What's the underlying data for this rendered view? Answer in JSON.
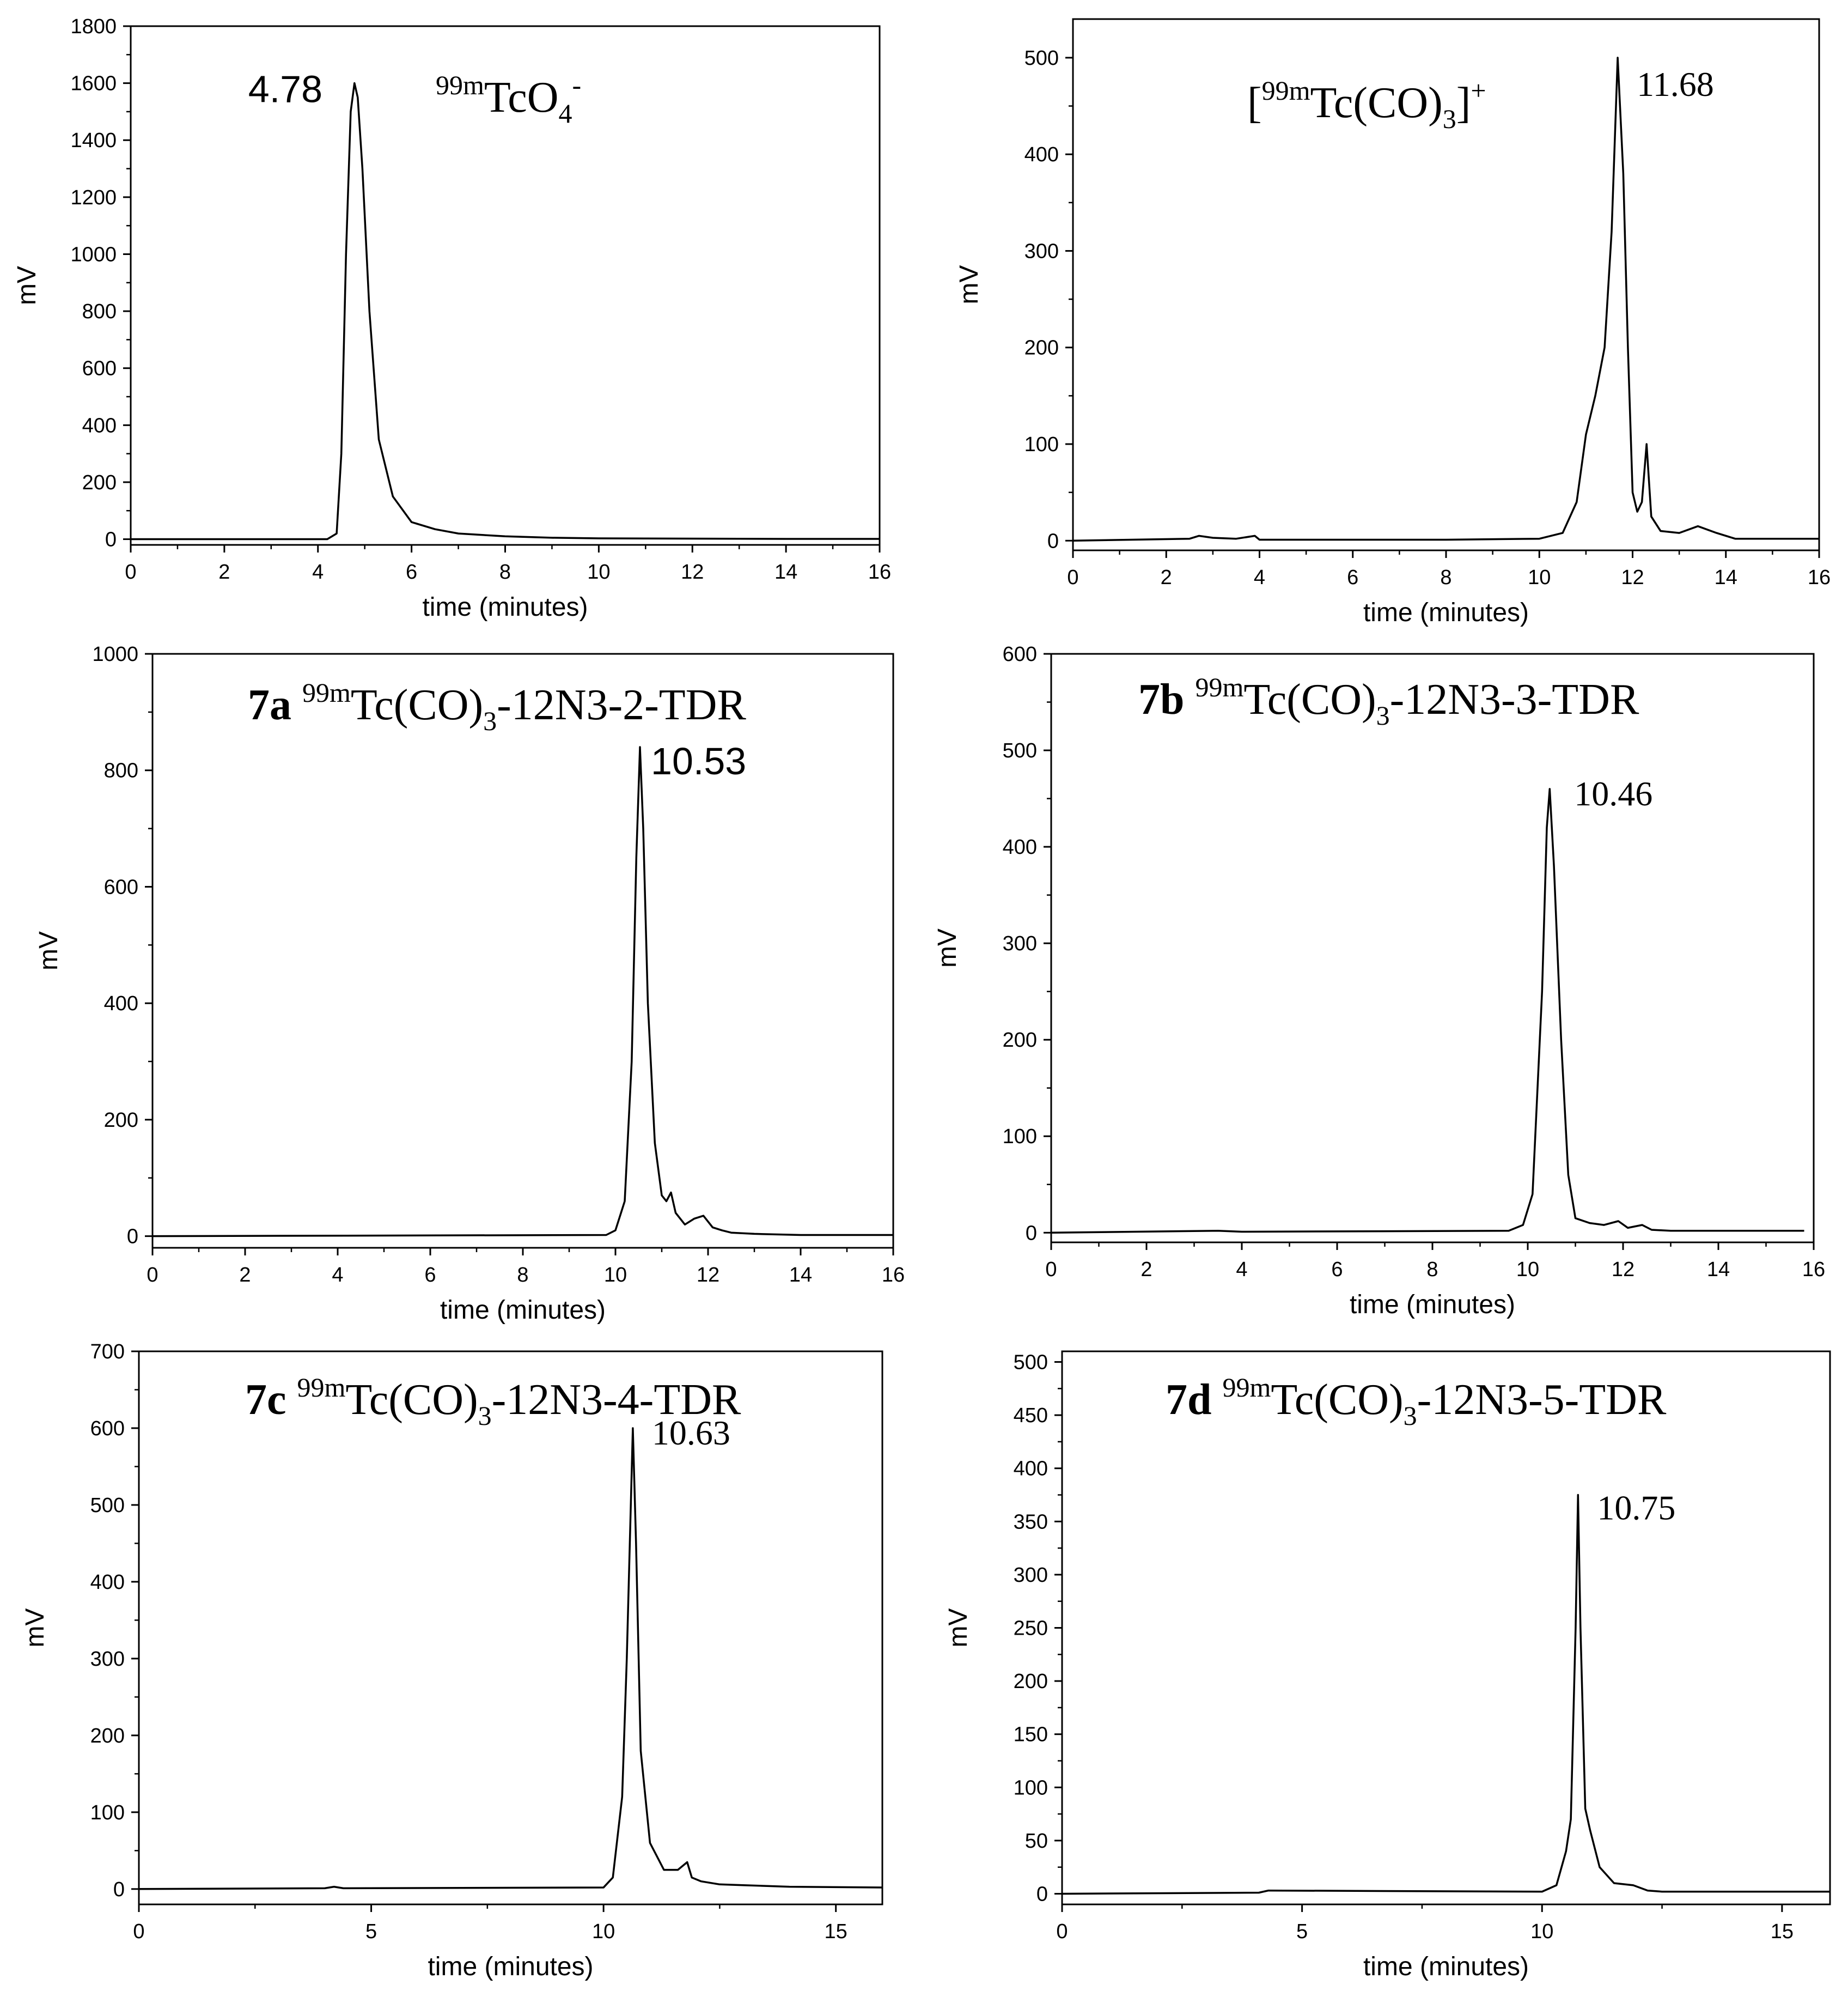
{
  "chart_data": [
    {
      "type": "line",
      "title_parts": {
        "prefix": "",
        "sup": "99m",
        "main": "TcO",
        "sub": "4",
        "tail": "",
        "sup2": "-"
      },
      "xlabel": "time (minutes)",
      "ylabel": "mV",
      "xlim": [
        0,
        16
      ],
      "ylim": [
        -20,
        1800
      ],
      "xticks": [
        0,
        2,
        4,
        6,
        8,
        10,
        12,
        14,
        16
      ],
      "yticks": [
        0,
        200,
        400,
        600,
        800,
        1000,
        1200,
        1400,
        1600,
        1800
      ],
      "peak_label": "4.78",
      "peak": {
        "x": 4.78,
        "y": 1600
      },
      "series": [
        {
          "x": [
            0,
            4.2,
            4.4,
            4.5,
            4.6,
            4.7,
            4.78,
            4.85,
            4.95,
            5.1,
            5.3,
            5.6,
            6.0,
            6.5,
            7.0,
            8.0,
            9.0,
            10,
            12,
            14,
            16
          ],
          "y": [
            0,
            0,
            20,
            300,
            1000,
            1500,
            1600,
            1550,
            1300,
            800,
            350,
            150,
            60,
            35,
            20,
            10,
            5,
            3,
            2,
            1,
            1
          ]
        }
      ]
    },
    {
      "type": "line",
      "title_parts": {
        "prefix": "[",
        "sup": "99m",
        "main": "Tc(CO)",
        "sub": "3",
        "tail": "]",
        "sup2": "+"
      },
      "xlabel": "time (minutes)",
      "ylabel": "mV",
      "xlim": [
        0,
        16
      ],
      "ylim": [
        -10,
        540
      ],
      "xticks": [
        0,
        2,
        4,
        6,
        8,
        10,
        12,
        14,
        16
      ],
      "yticks": [
        0,
        100,
        200,
        300,
        400,
        500
      ],
      "peak_label": "11.68",
      "peak": {
        "x": 11.68,
        "y": 500
      },
      "series": [
        {
          "x": [
            0,
            2.5,
            2.7,
            3.0,
            3.5,
            3.9,
            4.0,
            6,
            8,
            10,
            10.5,
            10.8,
            11.0,
            11.2,
            11.4,
            11.55,
            11.68,
            11.8,
            11.9,
            12.0,
            12.1,
            12.2,
            12.3,
            12.4,
            12.6,
            13.0,
            13.4,
            13.8,
            14.2,
            16
          ],
          "y": [
            0,
            2,
            5,
            3,
            2,
            5,
            1,
            1,
            1,
            2,
            8,
            40,
            110,
            150,
            200,
            320,
            500,
            380,
            200,
            50,
            30,
            40,
            100,
            25,
            10,
            8,
            15,
            8,
            2,
            2
          ]
        }
      ]
    },
    {
      "type": "line",
      "title_parts": {
        "prefix": "7a",
        "sup": "99m",
        "main": "Tc(CO)",
        "sub": "3",
        "tail": "-12N3-2-TDR",
        "sup2": ""
      },
      "xlabel": "time (minutes)",
      "ylabel": "mV",
      "xlim": [
        0,
        16
      ],
      "ylim": [
        -20,
        1000
      ],
      "xticks": [
        0,
        2,
        4,
        6,
        8,
        10,
        12,
        14,
        16
      ],
      "yticks": [
        0,
        200,
        400,
        600,
        800,
        1000
      ],
      "peak_label": "10.53",
      "peak": {
        "x": 10.53,
        "y": 840
      },
      "series": [
        {
          "x": [
            0,
            9.8,
            10.0,
            10.2,
            10.35,
            10.45,
            10.53,
            10.6,
            10.7,
            10.85,
            11.0,
            11.1,
            11.2,
            11.3,
            11.5,
            11.7,
            11.9,
            12.1,
            12.3,
            12.5,
            13.0,
            14.0,
            16
          ],
          "y": [
            0,
            2,
            10,
            60,
            300,
            650,
            840,
            700,
            400,
            160,
            70,
            60,
            75,
            40,
            20,
            30,
            35,
            15,
            10,
            6,
            4,
            2,
            2
          ]
        }
      ]
    },
    {
      "type": "line",
      "title_parts": {
        "prefix": "7b",
        "sup": "99m",
        "main": "Tc(CO)",
        "sub": "3",
        "tail": "-12N3-3-TDR",
        "sup2": ""
      },
      "xlabel": "time (minutes)",
      "ylabel": "mV",
      "xlim": [
        0,
        16
      ],
      "ylim": [
        -10,
        600
      ],
      "xticks": [
        0,
        2,
        4,
        6,
        8,
        10,
        12,
        14,
        16
      ],
      "yticks": [
        0,
        100,
        200,
        300,
        400,
        500,
        600
      ],
      "peak_label": "10.46",
      "peak": {
        "x": 10.46,
        "y": 460
      },
      "series": [
        {
          "x": [
            0,
            3.5,
            4.0,
            9.6,
            9.9,
            10.1,
            10.3,
            10.4,
            10.46,
            10.55,
            10.7,
            10.85,
            11.0,
            11.3,
            11.6,
            11.9,
            12.1,
            12.4,
            12.6,
            13.0,
            15.8
          ],
          "y": [
            0,
            2,
            1,
            2,
            8,
            40,
            250,
            420,
            460,
            380,
            200,
            60,
            15,
            10,
            8,
            12,
            5,
            8,
            3,
            2,
            2
          ]
        }
      ]
    },
    {
      "type": "line",
      "title_parts": {
        "prefix": "7c",
        "sup": "99m",
        "main": "Tc(CO)",
        "sub": "3",
        "tail": "-12N3-4-TDR",
        "sup2": ""
      },
      "xlabel": "time (minutes)",
      "ylabel": "mV",
      "xlim": [
        0,
        16
      ],
      "ylim": [
        -20,
        700
      ],
      "xticks": [
        0,
        5,
        10,
        15
      ],
      "yticks": [
        0,
        100,
        200,
        300,
        400,
        500,
        600,
        700
      ],
      "peak_label": "10.63",
      "peak": {
        "x": 10.63,
        "y": 600
      },
      "series": [
        {
          "x": [
            0,
            4.0,
            4.2,
            4.4,
            10.0,
            10.2,
            10.4,
            10.5,
            10.63,
            10.7,
            10.8,
            11.0,
            11.3,
            11.6,
            11.8,
            11.9,
            12.1,
            12.5,
            13.0,
            14.0,
            16
          ],
          "y": [
            0,
            1,
            3,
            1,
            2,
            15,
            120,
            300,
            600,
            450,
            180,
            60,
            25,
            25,
            35,
            15,
            10,
            6,
            5,
            3,
            2
          ]
        }
      ]
    },
    {
      "type": "line",
      "title_parts": {
        "prefix": "7d",
        "sup": "99m",
        "main": "Tc(CO)",
        "sub": "3",
        "tail": "-12N3-5-TDR",
        "sup2": ""
      },
      "xlabel": "time (minutes)",
      "ylabel": "mV",
      "xlim": [
        0,
        16
      ],
      "ylim": [
        -10,
        510
      ],
      "xticks": [
        0,
        5,
        10,
        15
      ],
      "yticks": [
        0,
        50,
        100,
        150,
        200,
        250,
        300,
        350,
        400,
        450,
        500
      ],
      "peak_label": "10.75",
      "peak": {
        "x": 10.75,
        "y": 375
      },
      "series": [
        {
          "x": [
            0,
            4.1,
            4.3,
            10.0,
            10.3,
            10.5,
            10.6,
            10.7,
            10.75,
            10.8,
            10.9,
            11.0,
            11.2,
            11.5,
            11.9,
            12.2,
            12.5,
            16
          ],
          "y": [
            0,
            1,
            3,
            2,
            8,
            40,
            70,
            250,
            375,
            250,
            80,
            60,
            25,
            10,
            8,
            3,
            2,
            2
          ]
        }
      ]
    }
  ]
}
